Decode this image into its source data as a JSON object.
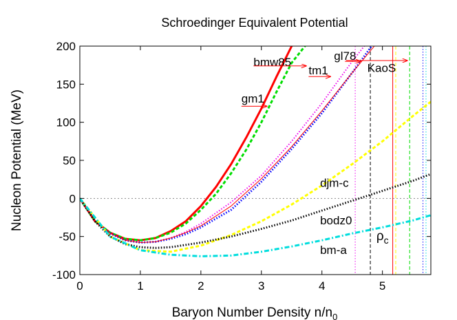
{
  "chart_data": {
    "type": "line",
    "title": "Schroedinger Equivalent Potential",
    "xlabel": "Baryon Number Density n/n",
    "xlabel_sub": "0",
    "ylabel": "Nucleon Potential (MeV)",
    "xlim": [
      0,
      5.8
    ],
    "ylim": [
      -100,
      200
    ],
    "x_ticks": [
      0,
      1,
      2,
      3,
      4,
      5
    ],
    "y_ticks": [
      -100,
      -50,
      0,
      50,
      100,
      150,
      200
    ],
    "x_tick_labels": [
      "0",
      "1",
      "2",
      "3",
      "4",
      "5"
    ],
    "y_tick_labels": [
      "-100",
      "-50",
      "0",
      "50",
      "100",
      "150",
      "200"
    ],
    "zero_line": true,
    "grid": false,
    "legend": "none",
    "series": [
      {
        "name": "gm1",
        "color": "#ff0000",
        "style": "solid",
        "width": 3,
        "x": [
          0,
          0.25,
          0.5,
          0.75,
          1.0,
          1.25,
          1.5,
          1.75,
          2.0,
          2.25,
          2.5,
          2.75,
          3.0,
          3.25,
          3.5,
          3.75
        ],
        "y": [
          0,
          -30,
          -45,
          -53,
          -55,
          -52,
          -43,
          -30,
          -10,
          15,
          45,
          80,
          118,
          160,
          200,
          240
        ]
      },
      {
        "name": "bmw85",
        "color": "#00dd00",
        "style": "dashed",
        "width": 3,
        "x": [
          0,
          0.25,
          0.5,
          0.75,
          1.0,
          1.25,
          1.5,
          1.75,
          2.0,
          2.25,
          2.5,
          2.75,
          3.0,
          3.25,
          3.5,
          3.75
        ],
        "y": [
          0,
          -30,
          -45,
          -53,
          -55,
          -52,
          -45,
          -33,
          -15,
          6,
          33,
          64,
          100,
          140,
          178,
          203
        ]
      },
      {
        "name": "gl78",
        "color": "#ee00ee",
        "style": "dotted",
        "width": 2,
        "x": [
          0,
          0.25,
          0.5,
          0.75,
          1.0,
          1.25,
          1.5,
          1.75,
          2.0,
          2.5,
          3.0,
          3.5,
          4.0,
          4.5,
          4.95
        ],
        "y": [
          0,
          -30,
          -46,
          -55,
          -58,
          -57,
          -52,
          -44,
          -33,
          -5,
          30,
          75,
          125,
          180,
          225
        ]
      },
      {
        "name": "tm1",
        "color": "#0000ff",
        "style": "dotted",
        "width": 3,
        "x": [
          0,
          0.25,
          0.5,
          0.75,
          1.0,
          1.25,
          1.5,
          1.75,
          2.0,
          2.5,
          3.0,
          3.5,
          4.0,
          4.5,
          4.95
        ],
        "y": [
          0,
          -30,
          -46,
          -55,
          -58,
          -57,
          -53,
          -47,
          -38,
          -15,
          22,
          65,
          112,
          165,
          214
        ]
      },
      {
        "name": "KaoS",
        "color": "#ff0000",
        "style": "solid",
        "width": 1,
        "x": [
          0,
          0.25,
          0.5,
          0.75,
          1.0,
          1.25,
          1.5,
          1.75,
          2.0,
          2.5,
          3.0,
          3.5,
          4.0,
          4.5,
          4.95
        ],
        "y": [
          0,
          -30,
          -46,
          -55,
          -58,
          -57,
          -52,
          -45,
          -36,
          -10,
          26,
          68,
          115,
          165,
          208
        ]
      },
      {
        "name": "djm-c",
        "color": "#ffff00",
        "style": "dashed",
        "width": 3,
        "x": [
          0,
          0.5,
          1.0,
          1.5,
          2.0,
          2.5,
          3.0,
          3.5,
          4.0,
          4.5,
          5.0,
          5.5,
          5.8
        ],
        "y": [
          0,
          -50,
          -68,
          -70,
          -62,
          -48,
          -30,
          -8,
          17,
          45,
          75,
          108,
          127
        ]
      },
      {
        "name": "bodz0",
        "color": "#000000",
        "style": "dotted",
        "width": 3,
        "x": [
          0,
          0.25,
          0.5,
          0.75,
          1.0,
          1.25,
          1.5,
          2.0,
          2.5,
          3.0,
          3.5,
          4.0,
          4.5,
          5.0,
          5.5,
          5.8
        ],
        "y": [
          0,
          -30,
          -50,
          -60,
          -64,
          -65,
          -64,
          -58,
          -50,
          -40,
          -29,
          -16,
          -3,
          10,
          23,
          32
        ]
      },
      {
        "name": "bm-a",
        "color": "#00dddd",
        "style": "dashdot",
        "width": 3,
        "x": [
          0,
          0.5,
          1.0,
          1.5,
          2.0,
          2.5,
          3.0,
          3.5,
          4.0,
          4.5,
          5.0,
          5.5,
          5.8
        ],
        "y": [
          0,
          -50,
          -68,
          -74,
          -76,
          -75,
          -70,
          -63,
          -55,
          -46,
          -38,
          -29,
          -22
        ]
      }
    ],
    "vertical_lines": [
      {
        "x": 4.55,
        "color": "#ee00ee",
        "style": "dotted"
      },
      {
        "x": 4.8,
        "color": "#000000",
        "style": "dashed"
      },
      {
        "x": 5.17,
        "color": "#ff0000",
        "style": "solid"
      },
      {
        "x": 5.22,
        "color": "#ffff00",
        "style": "dashed"
      },
      {
        "x": 5.45,
        "color": "#00dd00",
        "style": "dashed"
      },
      {
        "x": 5.67,
        "color": "#0000ff",
        "style": "dotted"
      },
      {
        "x": 5.72,
        "color": "#00dddd",
        "style": "dotted"
      }
    ],
    "annotations": [
      {
        "label": "gm1",
        "x": 2.67,
        "y": 126,
        "arrow_from": 2.67,
        "arrow_to": 3.1,
        "arrow_y": 121,
        "color": "#ff0000"
      },
      {
        "label": "bmw85",
        "x": 2.87,
        "y": 174,
        "arrow_from": 2.87,
        "arrow_to": 3.75,
        "arrow_y": 174,
        "color": "#ff0000"
      },
      {
        "label": "tm1",
        "x": 3.78,
        "y": 163,
        "arrow_from": 3.78,
        "arrow_to": 4.15,
        "arrow_y": 160,
        "color": "#ff0000"
      },
      {
        "label": "gl78",
        "x": 4.2,
        "y": 182,
        "arrow_from": 4.38,
        "arrow_to": 4.65,
        "arrow_y": 180,
        "color": "#ff0000"
      },
      {
        "label": "KaoS",
        "x": 4.75,
        "y": 166,
        "arrow_from": 4.4,
        "arrow_to": 5.42,
        "arrow_y": 181,
        "color": "#ff0000"
      },
      {
        "label": "djm-c",
        "x": 3.97,
        "y": 15,
        "color": "#000000"
      },
      {
        "label": "bodz0",
        "x": 3.97,
        "y": -34,
        "color": "#000000"
      },
      {
        "label": "bm-a",
        "x": 3.97,
        "y": -73,
        "color": "#000000"
      }
    ],
    "rho_label": {
      "text": "ρ",
      "sub": "c",
      "x": 4.9,
      "y": -55
    }
  }
}
